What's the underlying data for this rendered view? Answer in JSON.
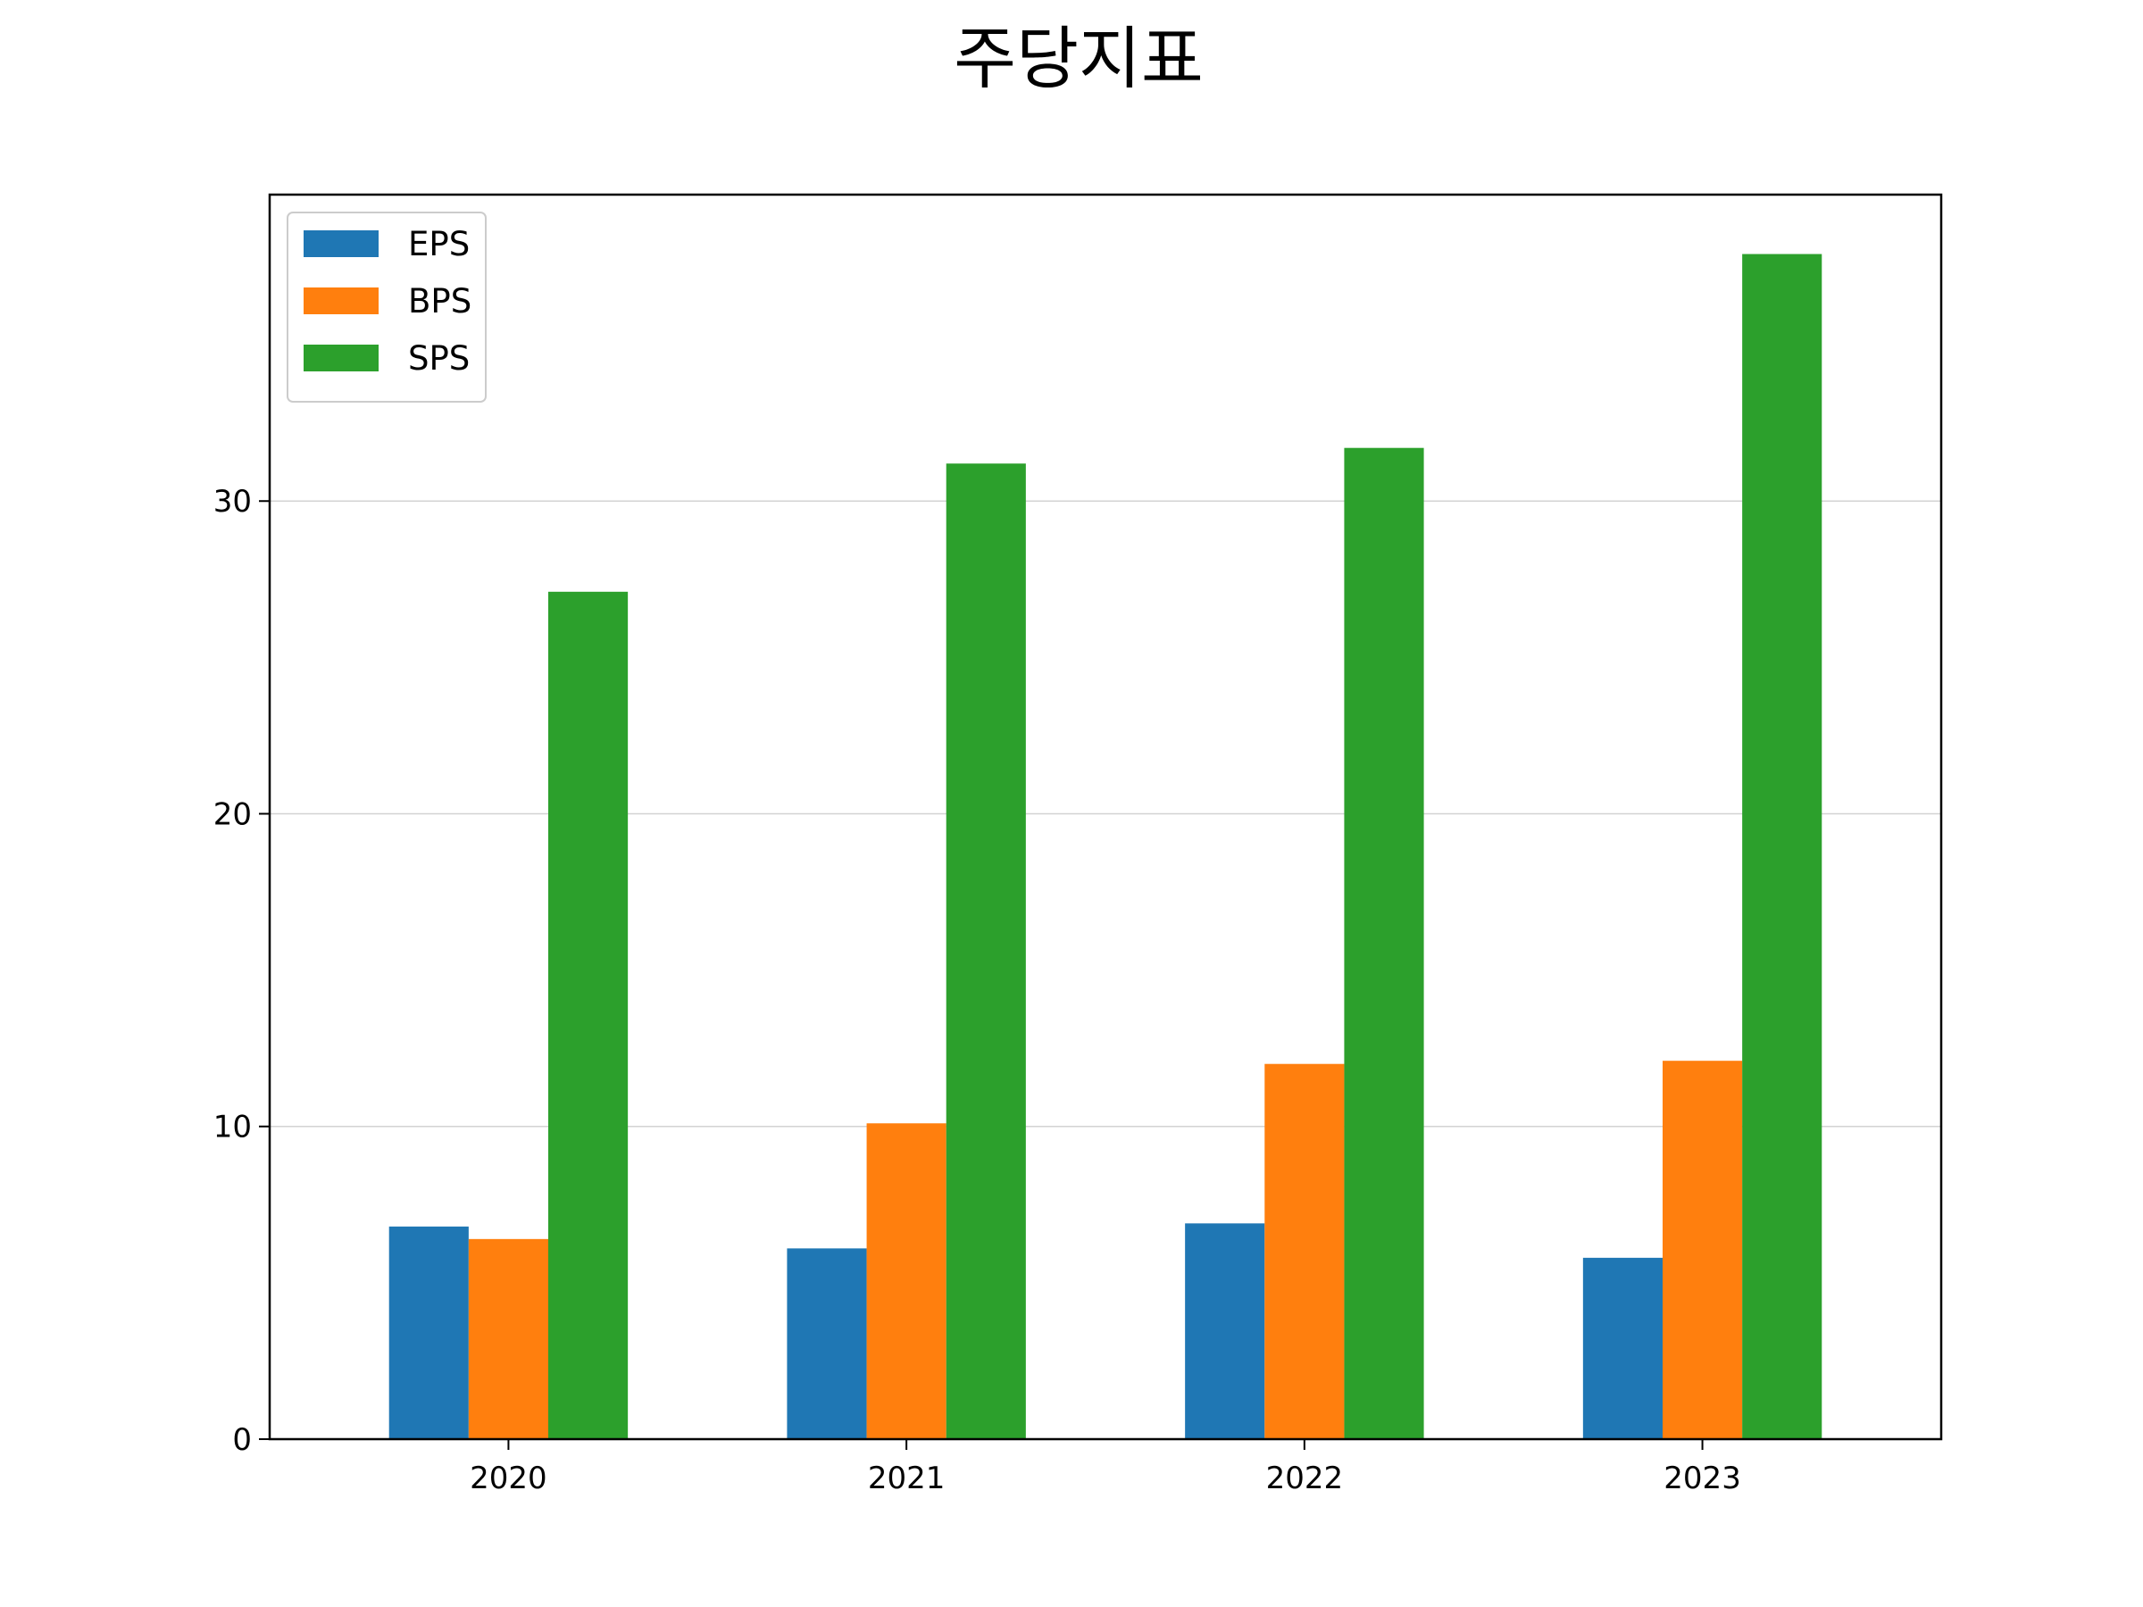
{
  "chart_data": {
    "type": "bar",
    "title": "주당지표",
    "xlabel": "",
    "ylabel": "",
    "categories": [
      "2020",
      "2021",
      "2022",
      "2023"
    ],
    "series": [
      {
        "name": "EPS",
        "color": "#1f77b4",
        "values": [
          6.8,
          6.1,
          6.9,
          5.8
        ]
      },
      {
        "name": "BPS",
        "color": "#ff7f0e",
        "values": [
          6.4,
          10.1,
          12.0,
          12.1
        ]
      },
      {
        "name": "SPS",
        "color": "#2ca02c",
        "values": [
          27.1,
          31.2,
          31.7,
          37.9
        ]
      }
    ],
    "ylim": [
      0,
      39.8
    ],
    "yticks": [
      0,
      10,
      20,
      30
    ],
    "grid": "horizontal",
    "legend_position": "top-left"
  }
}
